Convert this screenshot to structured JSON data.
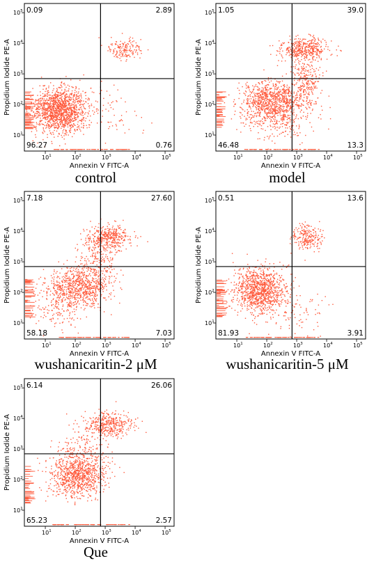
{
  "colors": {
    "dots": "#ff5a3c",
    "frame": "#000000"
  },
  "chart_data": [
    {
      "type": "scatter",
      "title": "control",
      "xlabel": "Annexin V FITC-A",
      "ylabel": "Propidium Iodide PE-A",
      "x_scale": "log",
      "y_scale": "log",
      "xlim": [
        2,
        200000
      ],
      "ylim": [
        3,
        200000
      ],
      "x_ticks": [
        "10^1",
        "10^2",
        "10^3",
        "10^4",
        "10^5"
      ],
      "y_ticks": [
        "10^1",
        "10^2",
        "10^3",
        "10^4",
        "10^5"
      ],
      "gate": {
        "x": 700,
        "y": 700
      },
      "quadrants": {
        "upper_left": "0.09",
        "upper_right": "2.89",
        "lower_left": "96.27",
        "lower_right": "0.76"
      }
    },
    {
      "type": "scatter",
      "title": "model",
      "xlabel": "Annexin V FITC-A",
      "ylabel": "Propidium Iodide PE-A",
      "x_scale": "log",
      "y_scale": "log",
      "xlim": [
        2,
        200000
      ],
      "ylim": [
        3,
        200000
      ],
      "x_ticks": [
        "10^1",
        "10^2",
        "10^3",
        "10^4",
        "10^5"
      ],
      "y_ticks": [
        "10^1",
        "10^2",
        "10^3",
        "10^4",
        "10^5"
      ],
      "gate": {
        "x": 700,
        "y": 700
      },
      "quadrants": {
        "upper_left": "1.05",
        "upper_right": "39.0",
        "lower_left": "46.48",
        "lower_right": "13.3"
      }
    },
    {
      "type": "scatter",
      "title": "wushanicaritin-2 μM",
      "xlabel": "Annexin V FITC-A",
      "ylabel": "Propidium Iodide PE-A",
      "x_scale": "log",
      "y_scale": "log",
      "xlim": [
        2,
        200000
      ],
      "ylim": [
        3,
        200000
      ],
      "x_ticks": [
        "10^1",
        "10^2",
        "10^3",
        "10^4",
        "10^5"
      ],
      "y_ticks": [
        "10^1",
        "10^2",
        "10^3",
        "10^4",
        "10^5"
      ],
      "gate": {
        "x": 700,
        "y": 700
      },
      "quadrants": {
        "upper_left": "7.18",
        "upper_right": "27.60",
        "lower_left": "58.18",
        "lower_right": "7.03"
      }
    },
    {
      "type": "scatter",
      "title": "wushanicaritin-5 μM",
      "xlabel": "Annexin V FITC-A",
      "ylabel": "Propidium Iodide PE-A",
      "x_scale": "log",
      "y_scale": "log",
      "xlim": [
        2,
        200000
      ],
      "ylim": [
        3,
        200000
      ],
      "x_ticks": [
        "10^1",
        "10^2",
        "10^3",
        "10^4",
        "10^5"
      ],
      "y_ticks": [
        "10^1",
        "10^2",
        "10^3",
        "10^4",
        "10^5"
      ],
      "gate": {
        "x": 700,
        "y": 700
      },
      "quadrants": {
        "upper_left": "0.51",
        "upper_right": "13.6",
        "lower_left": "81.93",
        "lower_right": "3.91"
      }
    },
    {
      "type": "scatter",
      "title": "Que",
      "xlabel": "Annexin V FITC-A",
      "ylabel": "Propidium Iodide PE-A",
      "x_scale": "log",
      "y_scale": "log",
      "xlim": [
        2,
        200000
      ],
      "ylim": [
        3,
        200000
      ],
      "x_ticks": [
        "10^1",
        "10^2",
        "10^3",
        "10^4",
        "10^5"
      ],
      "y_ticks": [
        "10^1",
        "10^2",
        "10^3",
        "10^4",
        "10^5"
      ],
      "gate": {
        "x": 700,
        "y": 700
      },
      "quadrants": {
        "upper_left": "6.14",
        "upper_right": "26.06",
        "lower_left": "65.23",
        "lower_right": "2.57"
      }
    }
  ]
}
